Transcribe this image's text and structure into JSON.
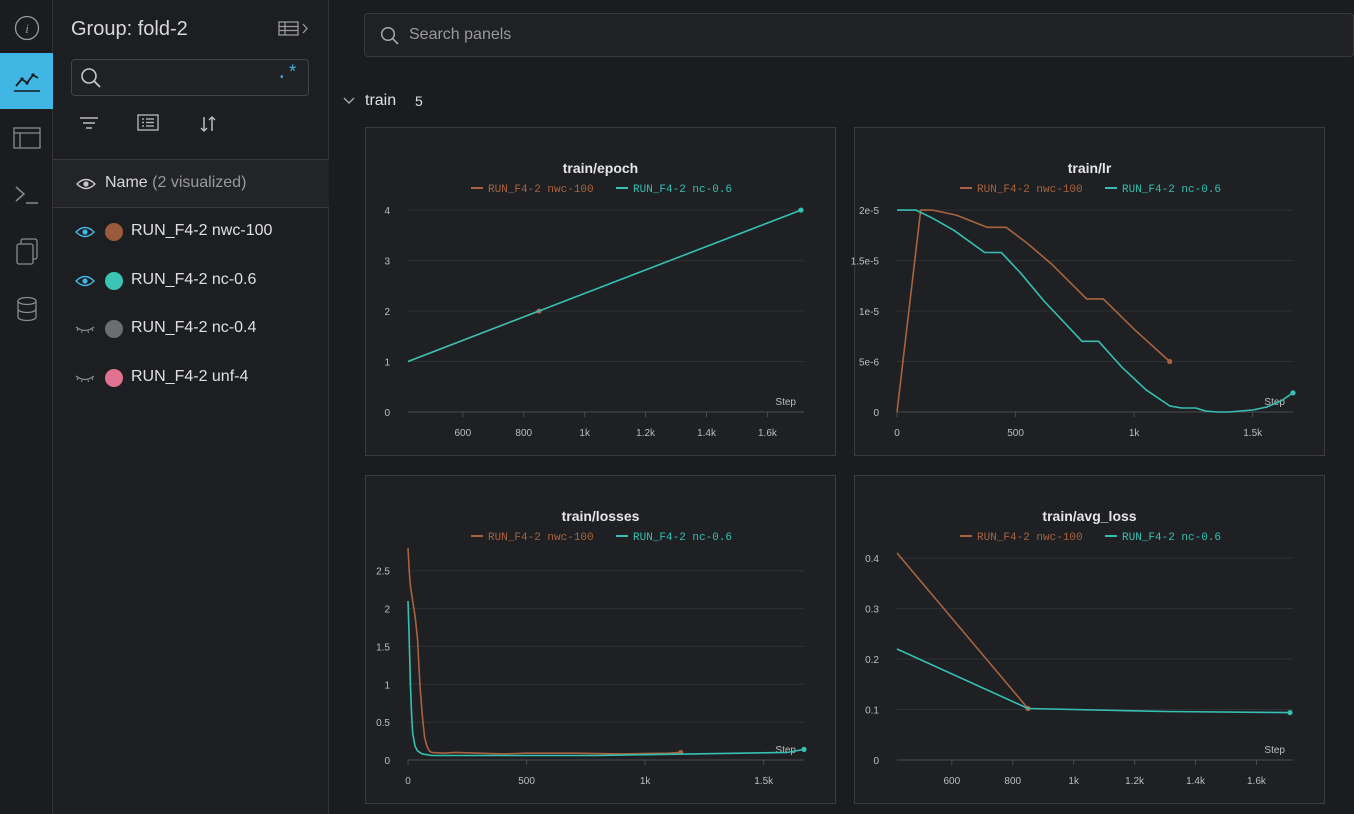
{
  "group": {
    "title": "Group: fold-2"
  },
  "run_search": {
    "placeholder": "",
    "regex_label": ".*"
  },
  "name_header": {
    "label": "Name",
    "visualized": "(2 visualized)"
  },
  "runs": [
    {
      "name": "RUN_F4-2 nwc-100",
      "color": "#9c5a3c",
      "visible": true
    },
    {
      "name": "RUN_F4-2 nc-0.6",
      "color": "#3bc4b4",
      "visible": true
    },
    {
      "name": "RUN_F4-2 nc-0.4",
      "color": "#6b6d70",
      "visible": false
    },
    {
      "name": "RUN_F4-2 unf-4",
      "color": "#e0718f",
      "visible": false
    }
  ],
  "panel_search": {
    "placeholder": "Search panels"
  },
  "section": {
    "name": "train",
    "count": "5"
  },
  "colors": {
    "accent": "#3fb6e4",
    "series_a": "#a9633f",
    "series_b": "#35c0b2"
  },
  "chart_data": [
    {
      "type": "line",
      "title": "train/epoch",
      "xlabel": "Step",
      "xlim": [
        420,
        1720
      ],
      "ylim": [
        0,
        4.2
      ],
      "xticks": [
        600,
        800,
        1000,
        1200,
        1400,
        1600
      ],
      "xticklabels": [
        "600",
        "800",
        "1k",
        "1.2k",
        "1.4k",
        "1.6k"
      ],
      "yticks": [
        0,
        1,
        2,
        3,
        4
      ],
      "yticklabels": [
        "0",
        "1",
        "2",
        "3",
        "4"
      ],
      "series": [
        {
          "name": "RUN_F4-2 nwc-100",
          "x": [
            420,
            850
          ],
          "y": [
            1,
            2
          ]
        },
        {
          "name": "RUN_F4-2 nc-0.6",
          "x": [
            420,
            850,
            1710
          ],
          "y": [
            1,
            2,
            4
          ]
        }
      ]
    },
    {
      "type": "line",
      "title": "train/lr",
      "xlabel": "Step",
      "xlim": [
        0,
        1670
      ],
      "ylim": [
        0,
        2.1e-05
      ],
      "xticks": [
        0,
        500,
        1000,
        1500
      ],
      "xticklabels": [
        "0",
        "500",
        "1k",
        "1.5k"
      ],
      "yticks": [
        0,
        5e-06,
        1e-05,
        1.5e-05,
        2e-05
      ],
      "yticklabels": [
        "0",
        "5e-6",
        "1e-5",
        "1.5e-5",
        "2e-5"
      ],
      "series": [
        {
          "name": "RUN_F4-2 nwc-100",
          "x": [
            0,
            100,
            150,
            250,
            380,
            460,
            550,
            650,
            800,
            870,
            1000,
            1150
          ],
          "y": [
            0,
            2e-05,
            2e-05,
            1.95e-05,
            1.83e-05,
            1.83e-05,
            1.67e-05,
            1.47e-05,
            1.12e-05,
            1.12e-05,
            8.2e-06,
            5e-06
          ]
        },
        {
          "name": "RUN_F4-2 nc-0.6",
          "x": [
            0,
            80,
            150,
            240,
            370,
            440,
            520,
            620,
            780,
            850,
            950,
            1050,
            1150,
            1200,
            1260,
            1300,
            1350,
            1400,
            1450,
            1500,
            1560,
            1620,
            1670
          ],
          "y": [
            2e-05,
            2e-05,
            1.92e-05,
            1.8e-05,
            1.58e-05,
            1.58e-05,
            1.38e-05,
            1.1e-05,
            7e-06,
            7e-06,
            4.4e-06,
            2.2e-06,
            6e-07,
            4e-07,
            4e-07,
            1e-07,
            0,
            0,
            1e-07,
            2e-07,
            5e-07,
            1.1e-06,
            1.9e-06
          ]
        }
      ]
    },
    {
      "type": "line",
      "title": "train/losses",
      "xlabel": "Step",
      "xlim": [
        0,
        1670
      ],
      "ylim": [
        0,
        2.8
      ],
      "xticks": [
        0,
        500,
        1000,
        1500
      ],
      "xticklabels": [
        "0",
        "500",
        "1k",
        "1.5k"
      ],
      "yticks": [
        0,
        0.5,
        1,
        1.5,
        2,
        2.5
      ],
      "yticklabels": [
        "0",
        "0.5",
        "1",
        "1.5",
        "2",
        "2.5"
      ],
      "series": [
        {
          "name": "RUN_F4-2 nwc-100",
          "x": [
            0,
            5,
            10,
            20,
            30,
            40,
            50,
            60,
            70,
            80,
            90,
            100,
            150,
            200,
            300,
            400,
            500,
            700,
            900,
            1100,
            1150
          ],
          "y": [
            2.8,
            2.5,
            2.3,
            2.1,
            1.9,
            1.6,
            1.0,
            0.6,
            0.3,
            0.18,
            0.12,
            0.1,
            0.09,
            0.1,
            0.09,
            0.08,
            0.09,
            0.09,
            0.08,
            0.09,
            0.1
          ]
        },
        {
          "name": "RUN_F4-2 nc-0.6",
          "x": [
            0,
            5,
            10,
            15,
            20,
            30,
            40,
            50,
            60,
            80,
            100,
            200,
            400,
            600,
            800,
            1000,
            1200,
            1400,
            1600,
            1670
          ],
          "y": [
            2.1,
            1.6,
            1.0,
            0.6,
            0.35,
            0.18,
            0.12,
            0.1,
            0.08,
            0.07,
            0.06,
            0.06,
            0.06,
            0.06,
            0.06,
            0.07,
            0.08,
            0.09,
            0.1,
            0.14
          ]
        }
      ]
    },
    {
      "type": "line",
      "title": "train/avg_loss",
      "xlabel": "Step",
      "xlim": [
        420,
        1720
      ],
      "ylim": [
        0,
        0.42
      ],
      "xticks": [
        600,
        800,
        1000,
        1200,
        1400,
        1600
      ],
      "xticklabels": [
        "600",
        "800",
        "1k",
        "1.2k",
        "1.4k",
        "1.6k"
      ],
      "yticks": [
        0,
        0.1,
        0.2,
        0.3,
        0.4
      ],
      "yticklabels": [
        "0",
        "0.1",
        "0.2",
        "0.3",
        "0.4"
      ],
      "series": [
        {
          "name": "RUN_F4-2 nwc-100",
          "x": [
            420,
            850
          ],
          "y": [
            0.41,
            0.102
          ]
        },
        {
          "name": "RUN_F4-2 nc-0.6",
          "x": [
            420,
            850,
            1300,
            1710
          ],
          "y": [
            0.22,
            0.102,
            0.096,
            0.094
          ]
        }
      ]
    }
  ]
}
